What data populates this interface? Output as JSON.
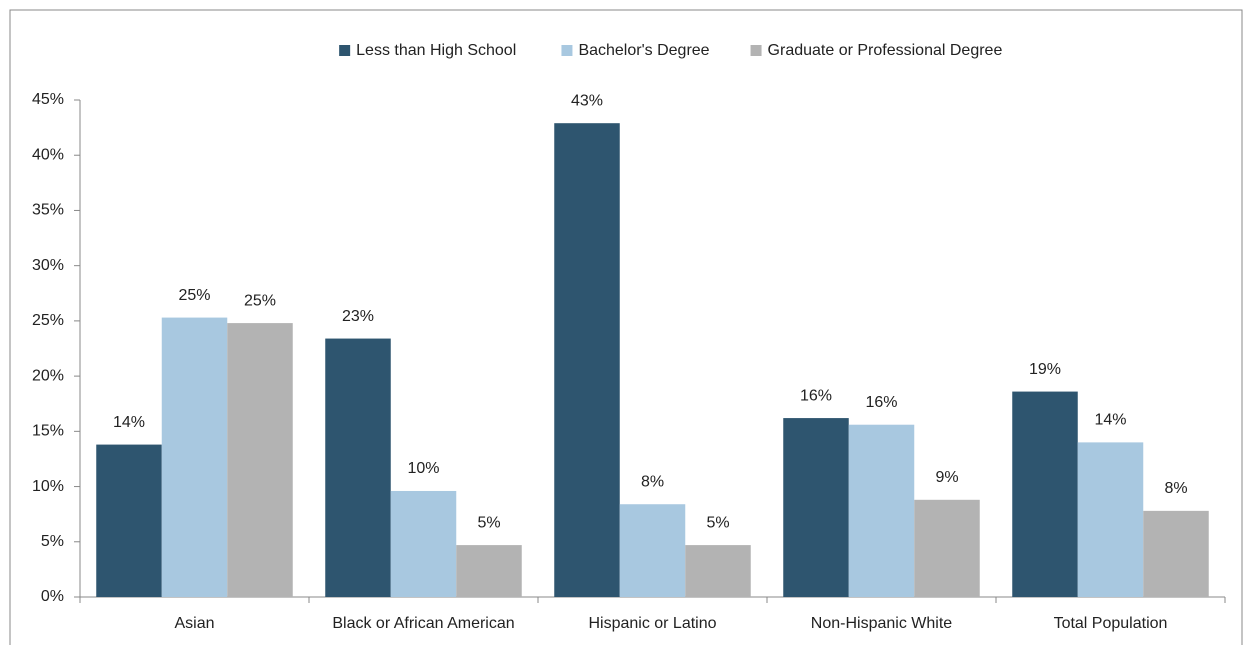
{
  "chart_data": {
    "type": "bar",
    "categories": [
      "Asian",
      "Black or African American",
      "Hispanic or Latino",
      "Non-Hispanic  White",
      "Total Population"
    ],
    "series": [
      {
        "name": "Less than High School",
        "color": "#2e556f",
        "values": [
          13.8,
          23.4,
          42.9,
          16.2,
          18.6
        ],
        "value_labels": [
          "14%",
          "23%",
          "43%",
          "16%",
          "19%"
        ]
      },
      {
        "name": "Bachelor's Degree",
        "color": "#a8c8e0",
        "values": [
          25.3,
          9.6,
          8.4,
          15.6,
          14.0
        ],
        "value_labels": [
          "25%",
          "10%",
          "8%",
          "16%",
          "14%"
        ]
      },
      {
        "name": "Graduate or Professional Degree",
        "color": "#b3b3b3",
        "values": [
          24.8,
          4.7,
          4.7,
          8.8,
          7.8
        ],
        "value_labels": [
          "25%",
          "5%",
          "5%",
          "9%",
          "8%"
        ]
      }
    ],
    "ylim": [
      0,
      45
    ],
    "yticks": [
      {
        "value": 0,
        "label": "0%"
      },
      {
        "value": 5,
        "label": "5%"
      },
      {
        "value": 10,
        "label": "10%"
      },
      {
        "value": 15,
        "label": "15%"
      },
      {
        "value": 20,
        "label": "20%"
      },
      {
        "value": 25,
        "label": "25%"
      },
      {
        "value": 30,
        "label": "30%"
      },
      {
        "value": 35,
        "label": "35%"
      },
      {
        "value": 40,
        "label": "40%"
      },
      {
        "value": 45,
        "label": "45%"
      }
    ],
    "grid": false,
    "legend": "top"
  }
}
